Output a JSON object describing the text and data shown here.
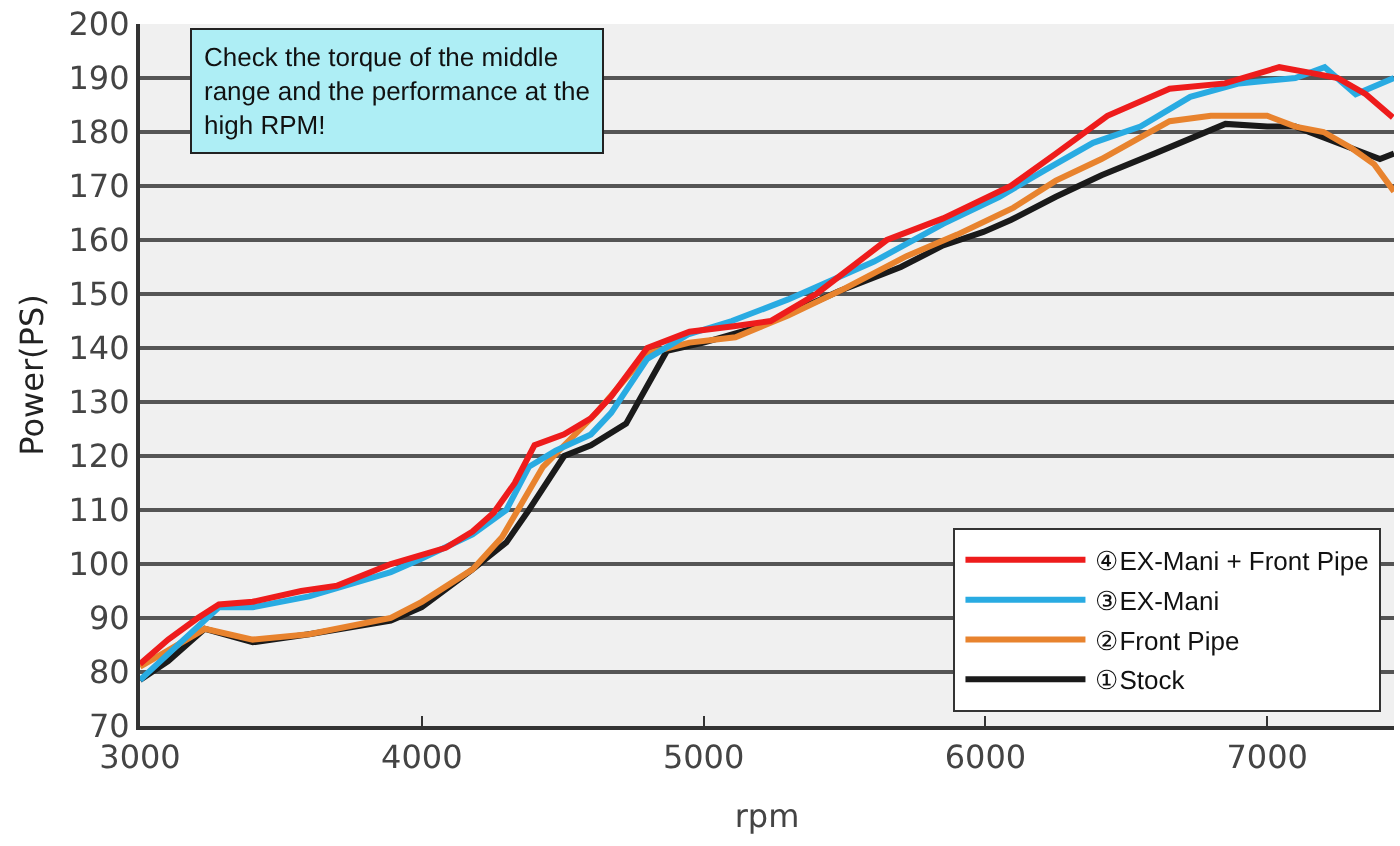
{
  "chart_data": {
    "type": "line",
    "xlabel": "rpm",
    "ylabel": "Power(PS)",
    "xlim": [
      3000,
      7450
    ],
    "ylim": [
      70,
      200
    ],
    "xticks": [
      3000,
      4000,
      5000,
      6000,
      7000
    ],
    "yticks": [
      70,
      80,
      90,
      100,
      110,
      120,
      130,
      140,
      150,
      160,
      170,
      180,
      190,
      200
    ],
    "grid": "y",
    "legend": "bottom right",
    "marker": "none",
    "line_style": "solid",
    "annotations": [
      "Check the torque of the middle range and the performance at the high RPM!"
    ],
    "series": [
      {
        "name": "④EX-Mani + Front Pipe",
        "color": "#ee1c1c",
        "x": [
          3000,
          3100,
          3205,
          3280,
          3400,
          3572,
          3700,
          3890,
          4085,
          4180,
          4255,
          4330,
          4400,
          4505,
          4600,
          4672,
          4800,
          4950,
          5100,
          5238,
          5400,
          5650,
          5850,
          6090,
          6250,
          6433,
          6654,
          6850,
          7043,
          7150,
          7250,
          7350,
          7446
        ],
        "values": [
          81.5,
          86,
          90,
          92.5,
          93,
          95,
          96,
          100,
          103,
          106,
          109.5,
          115,
          122,
          124,
          127,
          131,
          140,
          143,
          144,
          145,
          150,
          160,
          164,
          170,
          176,
          183,
          188,
          189,
          192,
          191,
          190,
          187,
          182.7
        ]
      },
      {
        "name": "③EX-Mani",
        "color": "#29abe2",
        "x": [
          3000,
          3155,
          3280,
          3400,
          3600,
          3890,
          4000,
          4180,
          4300,
          4380,
          4475,
          4600,
          4672,
          4800,
          4945,
          5100,
          5300,
          5605,
          5850,
          6050,
          6213,
          6382,
          6550,
          6727,
          6900,
          7100,
          7204,
          7314,
          7450
        ],
        "values": [
          78.5,
          86,
          92,
          92,
          94,
          98.5,
          101,
          105.5,
          110,
          118,
          121,
          124,
          128,
          138,
          142.5,
          145,
          149,
          156,
          163,
          168,
          173,
          178,
          181,
          186.5,
          189,
          190,
          192,
          187,
          190
        ]
      },
      {
        "name": "②Front Pipe",
        "color": "#e8832e",
        "x": [
          3000,
          3100,
          3230,
          3400,
          3600,
          3890,
          4000,
          4180,
          4285,
          4430,
          4620,
          4800,
          4950,
          5113,
          5300,
          5500,
          5720,
          5900,
          6100,
          6250,
          6412,
          6550,
          6654,
          6800,
          7000,
          7100,
          7200,
          7300,
          7380,
          7450
        ],
        "values": [
          81,
          84,
          88,
          86,
          87,
          90,
          93,
          99,
          105,
          118,
          128,
          139,
          141,
          142,
          146,
          151,
          157,
          161,
          166,
          171,
          175,
          179,
          182,
          183,
          183,
          181,
          180,
          177,
          174,
          169
        ]
      },
      {
        "name": "①Stock",
        "color": "#1a1a1a",
        "x": [
          3000,
          3100,
          3230,
          3400,
          3600,
          3890,
          4000,
          4180,
          4300,
          4380,
          4505,
          4600,
          4725,
          4870,
          5000,
          5200,
          5480,
          5700,
          5850,
          5993,
          6090,
          6250,
          6412,
          6600,
          6852,
          7000,
          7100,
          7200,
          7300,
          7400,
          7450
        ],
        "values": [
          78.5,
          82,
          88,
          85.5,
          87,
          89.5,
          92,
          99,
          104,
          110,
          120,
          122,
          126,
          139.5,
          141,
          144,
          150.5,
          155,
          159,
          161.5,
          163.7,
          168,
          172,
          176,
          181.5,
          181,
          181,
          179,
          177,
          175,
          176
        ]
      }
    ]
  }
}
